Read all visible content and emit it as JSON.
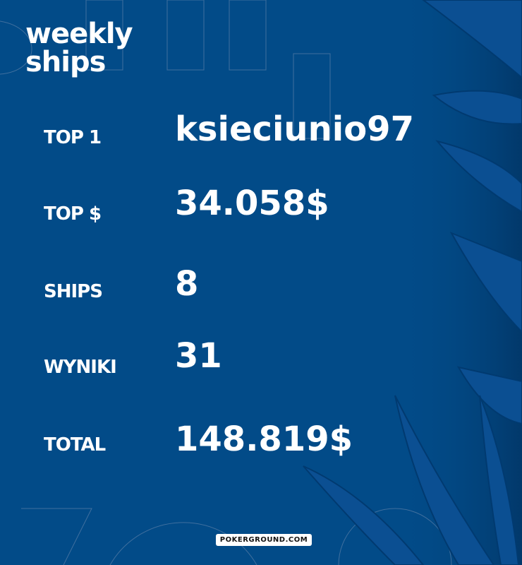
{
  "title": {
    "line1": "weekly",
    "line2": "ships"
  },
  "stats": [
    {
      "label": "TOP 1",
      "value": "ksieciunio97"
    },
    {
      "label": "TOP $",
      "value": "34.058$"
    },
    {
      "label": "SHIPS",
      "value": "8"
    },
    {
      "label": "WYNIKI",
      "value": "31"
    },
    {
      "label": "TOTAL",
      "value": "148.819$"
    }
  ],
  "logo": "POKERGROUND.COM",
  "colors": {
    "background": "#024b88",
    "text": "#ffffff",
    "leaf": "#0a3f75"
  }
}
